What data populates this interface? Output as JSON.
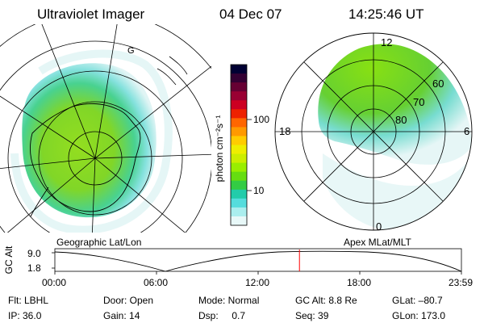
{
  "header": {
    "instrument": "Ultraviolet Imager",
    "date": "04 Dec 07",
    "time": "14:25:46 UT"
  },
  "left_panel": {
    "label": "Geographic Lat/Lon",
    "map_mark": "G"
  },
  "right_panel": {
    "label": "Apex MLat/MLT",
    "mlt_labels": [
      "12",
      "18",
      "6",
      "0"
    ],
    "mlat_labels": [
      "60",
      "70",
      "80"
    ]
  },
  "colorbar": {
    "unit_label": "photon cm⁻²s⁻¹",
    "tick_labels": [
      "100",
      "10"
    ],
    "colors": [
      "#000033",
      "#330033",
      "#660033",
      "#990033",
      "#cc0022",
      "#ee2200",
      "#ff6600",
      "#ff9900",
      "#ffcc00",
      "#eeee00",
      "#ccee00",
      "#99ee00",
      "#66dd11",
      "#33cc44",
      "#22ccaa",
      "#55dddd",
      "#aaeeee",
      "#e8f8f8"
    ]
  },
  "altitude_plot": {
    "y_label": "GC Alt",
    "y_ticks": [
      "9.0",
      "1.8"
    ],
    "x_ticks": [
      "00:00",
      "06:00",
      "12:00",
      "18:00",
      "23:59"
    ],
    "marker_time": "14:25:46",
    "marker_color": "#ff0000"
  },
  "info": {
    "flt": "Flt: LBHL",
    "ip": "IP: 36.0",
    "door": "Door: Open",
    "gain": "Gain: 14",
    "mode": "Mode: Normal",
    "dsp": "Dsp:     0.7",
    "gc_alt": "GC Alt: 8.8 Re",
    "seq": "Seq: 39",
    "glat": "GLat: –80.7",
    "glon": "GLon: 173.0"
  }
}
